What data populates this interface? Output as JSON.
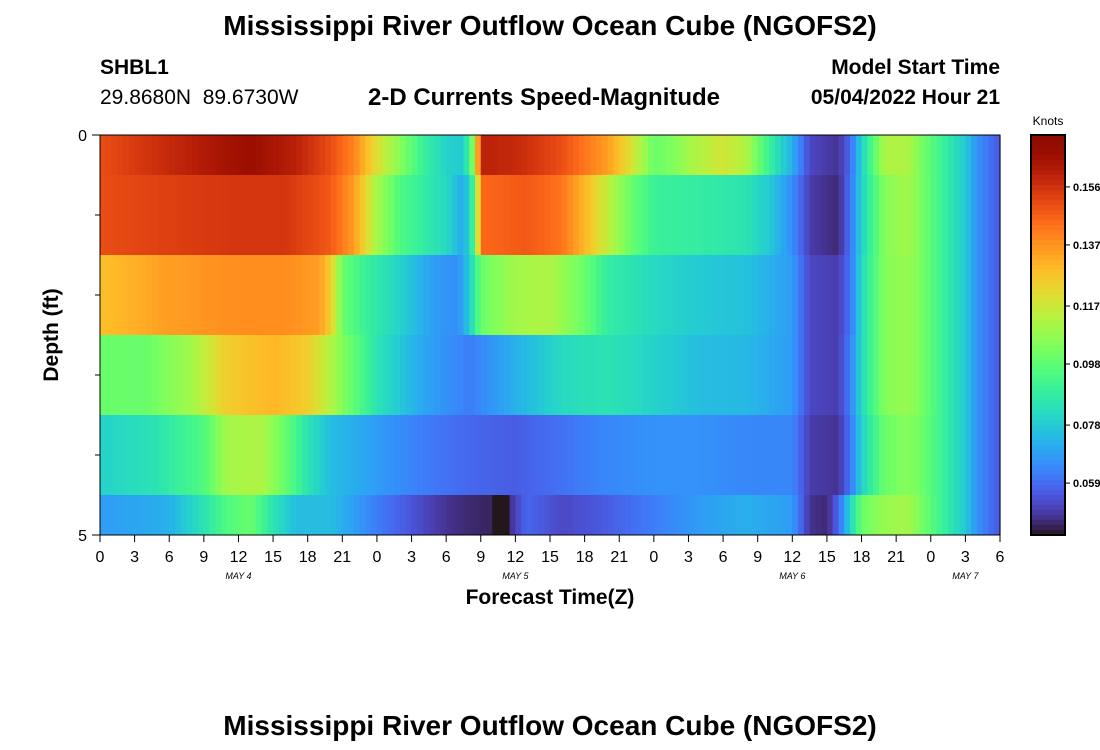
{
  "header": {
    "title": "Mississippi River Outflow Ocean Cube (NGOFS2)",
    "station_id": "SHBL1",
    "station_coords": "29.8680N  89.6730W",
    "plot_subtitle": "2-D Currents Speed-Magnitude",
    "model_start_label": "Model Start Time",
    "model_start_value": "05/04/2022 Hour 21"
  },
  "footer": {
    "title": "Mississippi River Outflow Ocean Cube (NGOFS2)"
  },
  "chart_data": {
    "type": "heatmap",
    "title": "2-D Currents Speed-Magnitude",
    "xlabel": "Forecast Time(Z)",
    "ylabel": "Depth (ft)",
    "x_tick_labels": [
      "0",
      "3",
      "6",
      "9",
      "12",
      "15",
      "18",
      "21",
      "0",
      "3",
      "6",
      "9",
      "12",
      "15",
      "18",
      "21",
      "0",
      "3",
      "6",
      "9",
      "12",
      "15",
      "18",
      "21",
      "0",
      "3",
      "6"
    ],
    "x_range_hours": [
      0,
      78
    ],
    "day_labels": [
      {
        "label": "MAY 4",
        "hour": 12
      },
      {
        "label": "MAY 5",
        "hour": 36
      },
      {
        "label": "MAY 6",
        "hour": 60
      },
      {
        "label": "MAY 7",
        "hour": 75
      }
    ],
    "y_tick_labels": [
      "0",
      "5"
    ],
    "y_range_ft": [
      0,
      5
    ],
    "depth_bins_ft": [
      [
        0,
        0.5
      ],
      [
        0.5,
        1.5
      ],
      [
        1.5,
        2.5
      ],
      [
        2.5,
        3.5
      ],
      [
        3.5,
        4.5
      ],
      [
        4.5,
        5
      ]
    ],
    "colorbar": {
      "unit": "Knots",
      "ticks": [
        0.156,
        0.137,
        0.117,
        0.098,
        0.078,
        0.059
      ],
      "range": [
        0.042,
        0.173
      ],
      "colormap": "turbo"
    },
    "layers": [
      {
        "depth": "0-0.5",
        "keyframes": [
          [
            0,
            0.15
          ],
          [
            6,
            0.158
          ],
          [
            10,
            0.163
          ],
          [
            13,
            0.167
          ],
          [
            17,
            0.16
          ],
          [
            20,
            0.15
          ],
          [
            22,
            0.14
          ],
          [
            24,
            0.12
          ],
          [
            26,
            0.105
          ],
          [
            28,
            0.09
          ],
          [
            30,
            0.08
          ],
          [
            31.5,
            0.078
          ],
          [
            32.5,
            0.11
          ],
          [
            33,
            0.16
          ],
          [
            36,
            0.158
          ],
          [
            40,
            0.15
          ],
          [
            44,
            0.135
          ],
          [
            46,
            0.12
          ],
          [
            48,
            0.1
          ],
          [
            50,
            0.105
          ],
          [
            51,
            0.11
          ],
          [
            54,
            0.118
          ],
          [
            56,
            0.112
          ],
          [
            58,
            0.09
          ],
          [
            60,
            0.072
          ],
          [
            61.5,
            0.052
          ],
          [
            64,
            0.048
          ],
          [
            65,
            0.058
          ],
          [
            66,
            0.08
          ],
          [
            68,
            0.112
          ],
          [
            70,
            0.112
          ],
          [
            71,
            0.104
          ],
          [
            73,
            0.09
          ],
          [
            75,
            0.078
          ],
          [
            76,
            0.066
          ],
          [
            78,
            0.055
          ]
        ]
      },
      {
        "depth": "0.5-1.5",
        "keyframes": [
          [
            0,
            0.15
          ],
          [
            6,
            0.153
          ],
          [
            12,
            0.155
          ],
          [
            16,
            0.155
          ],
          [
            20,
            0.148
          ],
          [
            22,
            0.135
          ],
          [
            24,
            0.11
          ],
          [
            26,
            0.095
          ],
          [
            28,
            0.088
          ],
          [
            30,
            0.082
          ],
          [
            31.5,
            0.07
          ],
          [
            32.5,
            0.095
          ],
          [
            33,
            0.145
          ],
          [
            37,
            0.148
          ],
          [
            40,
            0.143
          ],
          [
            42,
            0.13
          ],
          [
            44,
            0.115
          ],
          [
            46,
            0.1
          ],
          [
            48,
            0.09
          ],
          [
            52,
            0.088
          ],
          [
            56,
            0.085
          ],
          [
            58,
            0.078
          ],
          [
            60,
            0.065
          ],
          [
            61.5,
            0.05
          ],
          [
            64,
            0.046
          ],
          [
            65,
            0.06
          ],
          [
            66,
            0.08
          ],
          [
            68,
            0.105
          ],
          [
            70,
            0.11
          ],
          [
            71,
            0.104
          ],
          [
            73,
            0.09
          ],
          [
            75,
            0.078
          ],
          [
            76,
            0.066
          ],
          [
            78,
            0.055
          ]
        ]
      },
      {
        "depth": "1.5-2.5",
        "keyframes": [
          [
            0,
            0.128
          ],
          [
            6,
            0.135
          ],
          [
            12,
            0.138
          ],
          [
            16,
            0.138
          ],
          [
            19,
            0.135
          ],
          [
            20,
            0.125
          ],
          [
            21,
            0.1
          ],
          [
            23,
            0.09
          ],
          [
            26,
            0.08
          ],
          [
            29,
            0.068
          ],
          [
            31,
            0.065
          ],
          [
            32,
            0.078
          ],
          [
            33,
            0.1
          ],
          [
            36,
            0.11
          ],
          [
            39,
            0.112
          ],
          [
            42,
            0.1
          ],
          [
            44,
            0.088
          ],
          [
            48,
            0.082
          ],
          [
            52,
            0.078
          ],
          [
            56,
            0.076
          ],
          [
            60,
            0.068
          ],
          [
            61.5,
            0.052
          ],
          [
            64,
            0.05
          ],
          [
            65,
            0.06
          ],
          [
            66,
            0.082
          ],
          [
            68,
            0.105
          ],
          [
            70,
            0.108
          ],
          [
            71,
            0.104
          ],
          [
            73,
            0.09
          ],
          [
            75,
            0.078
          ],
          [
            76,
            0.066
          ],
          [
            78,
            0.055
          ]
        ]
      },
      {
        "depth": "2.5-3.5",
        "keyframes": [
          [
            0,
            0.1
          ],
          [
            4,
            0.1
          ],
          [
            8,
            0.11
          ],
          [
            11,
            0.125
          ],
          [
            15,
            0.13
          ],
          [
            18,
            0.125
          ],
          [
            20,
            0.112
          ],
          [
            22,
            0.098
          ],
          [
            24,
            0.085
          ],
          [
            28,
            0.07
          ],
          [
            32,
            0.062
          ],
          [
            36,
            0.072
          ],
          [
            40,
            0.082
          ],
          [
            44,
            0.085
          ],
          [
            48,
            0.08
          ],
          [
            52,
            0.075
          ],
          [
            56,
            0.074
          ],
          [
            60,
            0.068
          ],
          [
            61.5,
            0.052
          ],
          [
            64,
            0.05
          ],
          [
            65,
            0.062
          ],
          [
            66,
            0.082
          ],
          [
            68,
            0.105
          ],
          [
            70,
            0.108
          ],
          [
            71,
            0.104
          ],
          [
            73,
            0.09
          ],
          [
            75,
            0.078
          ],
          [
            76,
            0.066
          ],
          [
            78,
            0.055
          ]
        ]
      },
      {
        "depth": "3.5-4.5",
        "keyframes": [
          [
            0,
            0.08
          ],
          [
            5,
            0.085
          ],
          [
            9,
            0.095
          ],
          [
            11,
            0.11
          ],
          [
            14,
            0.112
          ],
          [
            16,
            0.1
          ],
          [
            18,
            0.085
          ],
          [
            20,
            0.075
          ],
          [
            24,
            0.068
          ],
          [
            28,
            0.062
          ],
          [
            32,
            0.058
          ],
          [
            36,
            0.056
          ],
          [
            40,
            0.06
          ],
          [
            44,
            0.064
          ],
          [
            48,
            0.066
          ],
          [
            52,
            0.066
          ],
          [
            56,
            0.064
          ],
          [
            60,
            0.064
          ],
          [
            61.5,
            0.05
          ],
          [
            64,
            0.048
          ],
          [
            65,
            0.06
          ],
          [
            66,
            0.08
          ],
          [
            68,
            0.1
          ],
          [
            70,
            0.105
          ],
          [
            71,
            0.102
          ],
          [
            73,
            0.09
          ],
          [
            75,
            0.078
          ],
          [
            76,
            0.066
          ],
          [
            78,
            0.055
          ]
        ]
      },
      {
        "depth": "4.5-5",
        "keyframes": [
          [
            0,
            0.068
          ],
          [
            6,
            0.072
          ],
          [
            9,
            0.085
          ],
          [
            11,
            0.095
          ],
          [
            13,
            0.1
          ],
          [
            15,
            0.085
          ],
          [
            17,
            0.075
          ],
          [
            20,
            0.075
          ],
          [
            24,
            0.062
          ],
          [
            28,
            0.052
          ],
          [
            30,
            0.048
          ],
          [
            32,
            0.046
          ],
          [
            34,
            0.045
          ],
          [
            34.6,
            0.03
          ],
          [
            35.2,
            0.03
          ],
          [
            35.5,
            0.047
          ],
          [
            37,
            0.058
          ],
          [
            40,
            0.052
          ],
          [
            44,
            0.056
          ],
          [
            48,
            0.062
          ],
          [
            52,
            0.068
          ],
          [
            56,
            0.072
          ],
          [
            60,
            0.068
          ],
          [
            61.5,
            0.048
          ],
          [
            63,
            0.046
          ],
          [
            64,
            0.058
          ],
          [
            65,
            0.08
          ],
          [
            66,
            0.1
          ],
          [
            68,
            0.108
          ],
          [
            70,
            0.11
          ],
          [
            71,
            0.104
          ],
          [
            73,
            0.09
          ],
          [
            75,
            0.078
          ],
          [
            76,
            0.066
          ],
          [
            78,
            0.055
          ]
        ]
      }
    ]
  }
}
